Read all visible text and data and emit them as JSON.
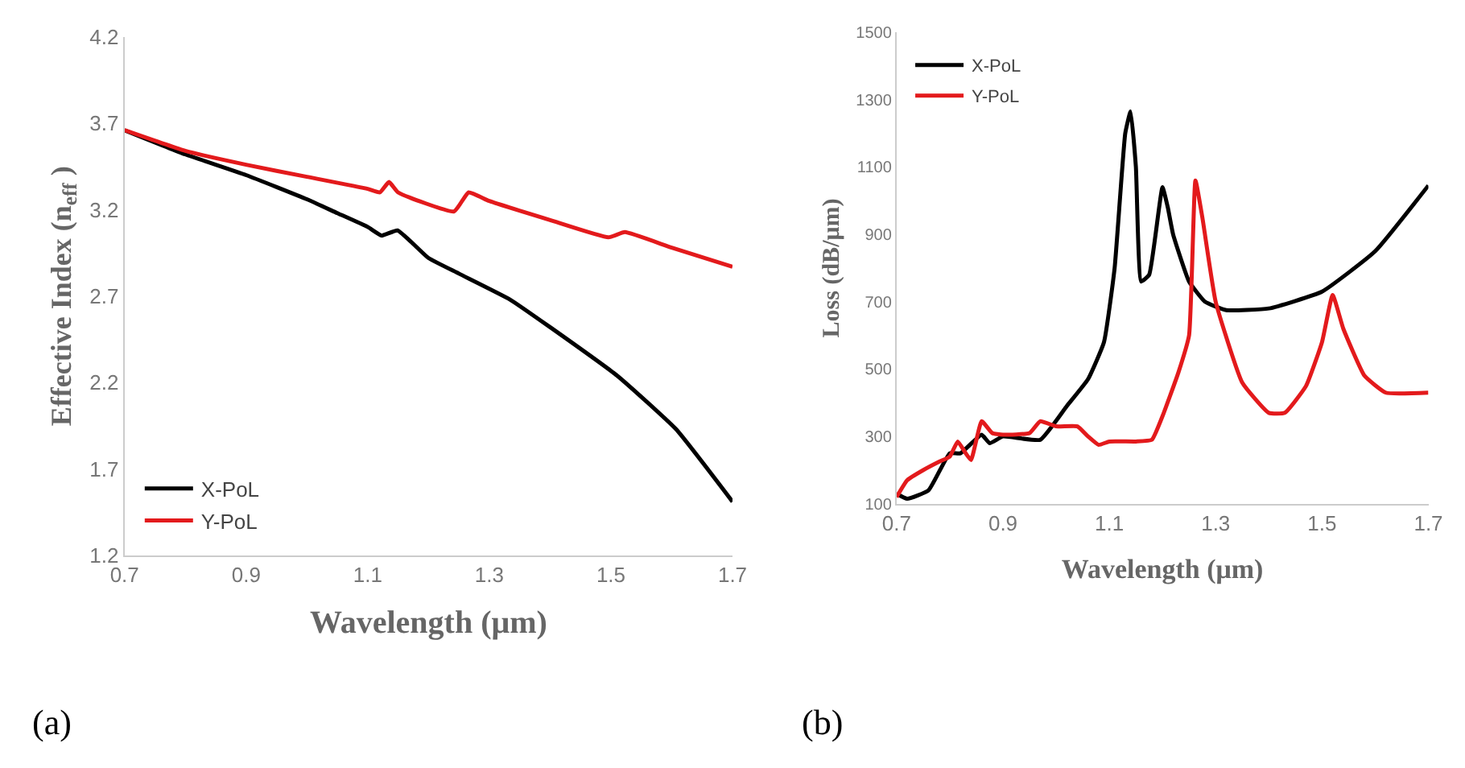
{
  "chart_data": [
    {
      "type": "line",
      "xlabel": "Wavelength (μm)",
      "ylabel": "Effective Index (n$_{eff}$ )",
      "xlim": [
        0.7,
        1.7
      ],
      "xticks": [
        0.7,
        0.9,
        1.1,
        1.3,
        1.5,
        1.7
      ],
      "ylim": [
        1.2,
        4.2
      ],
      "yticks": [
        1.2,
        1.7,
        2.2,
        2.7,
        3.2,
        3.7,
        4.2
      ],
      "legend": "bottom left",
      "annotations": [
        "(a)"
      ],
      "series": [
        {
          "name": "X-PoL",
          "color": "#000000",
          "x": [
            0.7,
            0.8,
            0.9,
            1.0,
            1.05,
            1.1,
            1.123,
            1.149,
            1.2,
            1.25,
            1.334,
            1.4,
            1.51,
            1.607,
            1.7
          ],
          "values": [
            3.66,
            3.52,
            3.4,
            3.26,
            3.18,
            3.1,
            3.05,
            3.08,
            2.92,
            2.83,
            2.68,
            2.52,
            2.24,
            1.93,
            1.51
          ]
        },
        {
          "name": "Y-PoL",
          "color": "#e31a1c",
          "x": [
            0.7,
            0.8,
            0.9,
            1.0,
            1.1,
            1.12,
            1.135,
            1.15,
            1.242,
            1.266,
            1.3,
            1.4,
            1.496,
            1.523,
            1.6,
            1.7
          ],
          "values": [
            3.66,
            3.54,
            3.46,
            3.39,
            3.32,
            3.3,
            3.36,
            3.3,
            3.19,
            3.3,
            3.25,
            3.14,
            3.04,
            3.07,
            2.98,
            2.87
          ]
        }
      ]
    },
    {
      "type": "line",
      "xlabel": "Wavelength (μm)",
      "ylabel": "Loss (dB/μm)",
      "xlim": [
        0.7,
        1.7
      ],
      "xticks": [
        0.7,
        0.9,
        1.1,
        1.3,
        1.5,
        1.7
      ],
      "ylim": [
        100,
        1500
      ],
      "yticks": [
        100,
        300,
        500,
        700,
        900,
        1100,
        1300,
        1500
      ],
      "legend": "top left",
      "annotations": [
        "(b)"
      ],
      "series": [
        {
          "name": "X-PoL",
          "color": "#000000",
          "x": [
            0.7,
            0.72,
            0.76,
            0.8,
            0.82,
            0.86,
            0.875,
            0.9,
            0.97,
            1.02,
            1.06,
            1.09,
            1.11,
            1.13,
            1.14,
            1.15,
            1.16,
            1.175,
            1.2,
            1.21,
            1.22,
            1.25,
            1.28,
            1.32,
            1.4,
            1.5,
            1.6,
            1.7
          ],
          "values": [
            130,
            115,
            140,
            250,
            250,
            305,
            280,
            300,
            290,
            390,
            470,
            580,
            800,
            1200,
            1265,
            1100,
            760,
            780,
            1040,
            980,
            900,
            760,
            700,
            675,
            680,
            730,
            850,
            1045
          ]
        },
        {
          "name": "Y-PoL",
          "color": "#e31a1c",
          "x": [
            0.7,
            0.72,
            0.75,
            0.78,
            0.8,
            0.815,
            0.83,
            0.84,
            0.86,
            0.88,
            0.9,
            0.95,
            0.97,
            1.0,
            1.04,
            1.06,
            1.08,
            1.1,
            1.15,
            1.18,
            1.2,
            1.23,
            1.25,
            1.262,
            1.275,
            1.3,
            1.35,
            1.4,
            1.43,
            1.47,
            1.5,
            1.52,
            1.54,
            1.58,
            1.62,
            1.7
          ],
          "values": [
            120,
            170,
            200,
            225,
            240,
            285,
            250,
            230,
            345,
            310,
            305,
            310,
            345,
            330,
            330,
            300,
            275,
            285,
            285,
            290,
            360,
            490,
            600,
            1060,
            950,
            700,
            460,
            370,
            370,
            450,
            580,
            720,
            620,
            480,
            430,
            430
          ]
        }
      ]
    }
  ]
}
